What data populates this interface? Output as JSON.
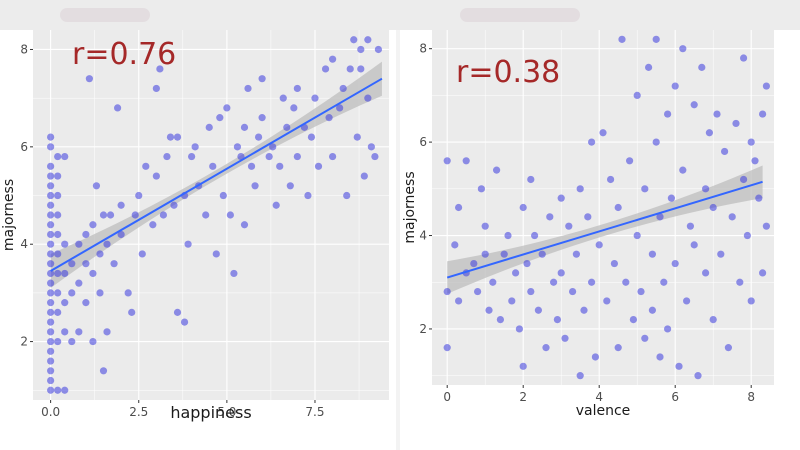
{
  "colors": {
    "background": "#f3f3f3",
    "panel_bg": "#ebebeb",
    "grid": "#ffffff",
    "point": "#3b3bdf",
    "fit_line": "#3366ff",
    "ci_band": "#bdbdbd",
    "annotation": "#a52828"
  },
  "chart_data": [
    {
      "type": "scatter",
      "title": "",
      "annotation": "r=0.76",
      "xlabel": "happiness",
      "ylabel": "majorness",
      "xlim": [
        -0.5,
        9.6
      ],
      "ylim": [
        0.8,
        8.4
      ],
      "xticks": [
        0,
        2.5,
        5,
        7.5
      ],
      "xtick_labels": [
        "0.0",
        "2.5",
        "5.0",
        "7.5"
      ],
      "yticks": [
        2,
        4,
        6,
        8
      ],
      "ytick_labels": [
        "2",
        "4",
        "6",
        "8"
      ],
      "grid": true,
      "fit": {
        "x0": 0,
        "y0": 3.45,
        "x1": 9.4,
        "y1": 7.4,
        "se_min": 0.1,
        "se_max": 0.35
      },
      "points": [
        [
          0,
          1.0
        ],
        [
          0,
          1.2
        ],
        [
          0,
          1.4
        ],
        [
          0,
          1.6
        ],
        [
          0,
          1.8
        ],
        [
          0,
          2.0
        ],
        [
          0,
          2.2
        ],
        [
          0,
          2.4
        ],
        [
          0,
          2.6
        ],
        [
          0,
          2.8
        ],
        [
          0,
          3.0
        ],
        [
          0,
          3.2
        ],
        [
          0,
          3.4
        ],
        [
          0,
          3.6
        ],
        [
          0,
          3.8
        ],
        [
          0,
          4.0
        ],
        [
          0,
          4.2
        ],
        [
          0,
          4.4
        ],
        [
          0,
          4.6
        ],
        [
          0,
          4.8
        ],
        [
          0,
          5.0
        ],
        [
          0,
          5.2
        ],
        [
          0,
          5.4
        ],
        [
          0,
          5.6
        ],
        [
          0,
          6.0
        ],
        [
          0,
          6.2
        ],
        [
          0.2,
          1.0
        ],
        [
          0.2,
          2.0
        ],
        [
          0.2,
          2.6
        ],
        [
          0.2,
          3.0
        ],
        [
          0.2,
          3.4
        ],
        [
          0.2,
          3.8
        ],
        [
          0.2,
          4.2
        ],
        [
          0.2,
          4.6
        ],
        [
          0.2,
          5.0
        ],
        [
          0.2,
          5.4
        ],
        [
          0.2,
          5.8
        ],
        [
          0.4,
          1.0
        ],
        [
          0.4,
          2.2
        ],
        [
          0.4,
          2.8
        ],
        [
          0.4,
          3.4
        ],
        [
          0.4,
          4.0
        ],
        [
          0.4,
          5.8
        ],
        [
          0.6,
          2.0
        ],
        [
          0.6,
          3.0
        ],
        [
          0.6,
          3.6
        ],
        [
          0.8,
          2.2
        ],
        [
          0.8,
          3.2
        ],
        [
          0.8,
          4.0
        ],
        [
          1.0,
          2.8
        ],
        [
          1.0,
          3.6
        ],
        [
          1.0,
          4.2
        ],
        [
          1.1,
          7.4
        ],
        [
          1.2,
          2.0
        ],
        [
          1.2,
          3.4
        ],
        [
          1.2,
          4.4
        ],
        [
          1.3,
          5.2
        ],
        [
          1.4,
          3.0
        ],
        [
          1.4,
          3.8
        ],
        [
          1.5,
          4.6
        ],
        [
          1.5,
          1.4
        ],
        [
          1.6,
          2.2
        ],
        [
          1.6,
          4.0
        ],
        [
          1.7,
          4.6
        ],
        [
          1.8,
          3.6
        ],
        [
          1.9,
          6.8
        ],
        [
          2.0,
          4.2
        ],
        [
          2.0,
          4.8
        ],
        [
          2.2,
          3.0
        ],
        [
          2.3,
          2.6
        ],
        [
          2.4,
          4.6
        ],
        [
          2.5,
          5.0
        ],
        [
          2.6,
          3.8
        ],
        [
          2.7,
          5.6
        ],
        [
          2.9,
          4.4
        ],
        [
          3.0,
          5.4
        ],
        [
          3.0,
          7.2
        ],
        [
          3.1,
          7.6
        ],
        [
          3.2,
          4.6
        ],
        [
          3.3,
          5.8
        ],
        [
          3.4,
          6.2
        ],
        [
          3.5,
          4.8
        ],
        [
          3.6,
          2.6
        ],
        [
          3.6,
          6.2
        ],
        [
          3.8,
          2.4
        ],
        [
          3.8,
          5.0
        ],
        [
          3.9,
          4.0
        ],
        [
          4.0,
          5.8
        ],
        [
          4.1,
          6.0
        ],
        [
          4.2,
          5.2
        ],
        [
          4.4,
          4.6
        ],
        [
          4.5,
          6.4
        ],
        [
          4.6,
          5.6
        ],
        [
          4.7,
          3.8
        ],
        [
          4.8,
          6.6
        ],
        [
          4.9,
          5.0
        ],
        [
          5.0,
          6.8
        ],
        [
          5.1,
          4.6
        ],
        [
          5.2,
          3.4
        ],
        [
          5.3,
          6.0
        ],
        [
          5.4,
          5.8
        ],
        [
          5.5,
          6.4
        ],
        [
          5.5,
          4.4
        ],
        [
          5.6,
          7.2
        ],
        [
          5.7,
          5.6
        ],
        [
          5.8,
          5.2
        ],
        [
          5.9,
          6.2
        ],
        [
          6.0,
          6.6
        ],
        [
          6.0,
          7.4
        ],
        [
          6.2,
          5.8
        ],
        [
          6.3,
          6.0
        ],
        [
          6.4,
          4.8
        ],
        [
          6.5,
          5.6
        ],
        [
          6.6,
          7.0
        ],
        [
          6.7,
          6.4
        ],
        [
          6.8,
          5.2
        ],
        [
          6.9,
          6.8
        ],
        [
          7.0,
          5.8
        ],
        [
          7.0,
          7.2
        ],
        [
          7.2,
          6.4
        ],
        [
          7.3,
          5.0
        ],
        [
          7.4,
          6.2
        ],
        [
          7.5,
          7.0
        ],
        [
          7.6,
          5.6
        ],
        [
          7.8,
          7.6
        ],
        [
          7.9,
          6.6
        ],
        [
          8.0,
          5.8
        ],
        [
          8.0,
          7.8
        ],
        [
          8.2,
          6.8
        ],
        [
          8.3,
          7.2
        ],
        [
          8.4,
          5.0
        ],
        [
          8.5,
          7.6
        ],
        [
          8.6,
          8.2
        ],
        [
          8.7,
          6.2
        ],
        [
          8.8,
          8.0
        ],
        [
          8.8,
          7.6
        ],
        [
          8.9,
          5.4
        ],
        [
          9.0,
          8.2
        ],
        [
          9.0,
          7.0
        ],
        [
          9.1,
          6.0
        ],
        [
          9.2,
          5.8
        ],
        [
          9.3,
          8.0
        ]
      ]
    },
    {
      "type": "scatter",
      "title": "",
      "annotation": "r=0.38",
      "xlabel": "valence",
      "ylabel": "majorness",
      "xlim": [
        -0.4,
        8.6
      ],
      "ylim": [
        0.8,
        8.4
      ],
      "xticks": [
        0,
        2,
        4,
        6,
        8
      ],
      "xtick_labels": [
        "0",
        "2",
        "4",
        "6",
        "8"
      ],
      "yticks": [
        2,
        4,
        6,
        8
      ],
      "ytick_labels": [
        "2",
        "4",
        "6",
        "8"
      ],
      "grid": true,
      "fit": {
        "x0": 0,
        "y0": 3.1,
        "x1": 8.3,
        "y1": 5.15,
        "se_min": 0.13,
        "se_max": 0.35
      },
      "points": [
        [
          0,
          1.6
        ],
        [
          0,
          2.8
        ],
        [
          0,
          5.6
        ],
        [
          0.2,
          3.8
        ],
        [
          0.3,
          4.6
        ],
        [
          0.3,
          2.6
        ],
        [
          0.5,
          5.6
        ],
        [
          0.5,
          3.2
        ],
        [
          0.7,
          3.4
        ],
        [
          0.8,
          2.8
        ],
        [
          0.9,
          5.0
        ],
        [
          1.0,
          3.6
        ],
        [
          1.0,
          4.2
        ],
        [
          1.1,
          2.4
        ],
        [
          1.2,
          3.0
        ],
        [
          1.3,
          5.4
        ],
        [
          1.4,
          2.2
        ],
        [
          1.5,
          3.6
        ],
        [
          1.6,
          4.0
        ],
        [
          1.7,
          2.6
        ],
        [
          1.8,
          3.2
        ],
        [
          1.9,
          2.0
        ],
        [
          2.0,
          4.6
        ],
        [
          2.0,
          1.2
        ],
        [
          2.1,
          3.4
        ],
        [
          2.2,
          2.8
        ],
        [
          2.2,
          5.2
        ],
        [
          2.3,
          4.0
        ],
        [
          2.4,
          2.4
        ],
        [
          2.5,
          3.6
        ],
        [
          2.6,
          1.6
        ],
        [
          2.7,
          4.4
        ],
        [
          2.8,
          3.0
        ],
        [
          2.9,
          2.2
        ],
        [
          3.0,
          4.8
        ],
        [
          3.0,
          3.2
        ],
        [
          3.1,
          1.8
        ],
        [
          3.2,
          4.2
        ],
        [
          3.3,
          2.8
        ],
        [
          3.4,
          3.6
        ],
        [
          3.5,
          1.0
        ],
        [
          3.5,
          5.0
        ],
        [
          3.6,
          2.4
        ],
        [
          3.7,
          4.4
        ],
        [
          3.8,
          6.0
        ],
        [
          3.8,
          3.0
        ],
        [
          3.9,
          1.4
        ],
        [
          4.0,
          3.8
        ],
        [
          4.1,
          6.2
        ],
        [
          4.2,
          2.6
        ],
        [
          4.3,
          5.2
        ],
        [
          4.4,
          3.4
        ],
        [
          4.5,
          4.6
        ],
        [
          4.5,
          1.6
        ],
        [
          4.6,
          8.2
        ],
        [
          4.7,
          3.0
        ],
        [
          4.8,
          5.6
        ],
        [
          4.9,
          2.2
        ],
        [
          5.0,
          4.0
        ],
        [
          5.0,
          7.0
        ],
        [
          5.1,
          2.8
        ],
        [
          5.2,
          5.0
        ],
        [
          5.2,
          1.8
        ],
        [
          5.3,
          7.6
        ],
        [
          5.4,
          3.6
        ],
        [
          5.4,
          2.4
        ],
        [
          5.5,
          8.2
        ],
        [
          5.5,
          6.0
        ],
        [
          5.6,
          4.4
        ],
        [
          5.6,
          1.4
        ],
        [
          5.7,
          3.0
        ],
        [
          5.8,
          6.6
        ],
        [
          5.8,
          2.0
        ],
        [
          5.9,
          4.8
        ],
        [
          6.0,
          7.2
        ],
        [
          6.0,
          3.4
        ],
        [
          6.1,
          1.2
        ],
        [
          6.2,
          5.4
        ],
        [
          6.2,
          8.0
        ],
        [
          6.3,
          2.6
        ],
        [
          6.4,
          4.2
        ],
        [
          6.5,
          6.8
        ],
        [
          6.5,
          3.8
        ],
        [
          6.6,
          1.0
        ],
        [
          6.7,
          7.6
        ],
        [
          6.8,
          5.0
        ],
        [
          6.8,
          3.2
        ],
        [
          6.9,
          6.2
        ],
        [
          7.0,
          2.2
        ],
        [
          7.0,
          4.6
        ],
        [
          7.1,
          6.6
        ],
        [
          7.2,
          3.6
        ],
        [
          7.3,
          5.8
        ],
        [
          7.4,
          1.6
        ],
        [
          7.5,
          4.4
        ],
        [
          7.6,
          6.4
        ],
        [
          7.7,
          3.0
        ],
        [
          7.8,
          5.2
        ],
        [
          7.8,
          7.8
        ],
        [
          7.9,
          4.0
        ],
        [
          8.0,
          6.0
        ],
        [
          8.0,
          2.6
        ],
        [
          8.1,
          5.6
        ],
        [
          8.2,
          4.8
        ],
        [
          8.3,
          3.2
        ],
        [
          8.3,
          6.6
        ],
        [
          8.4,
          7.2
        ],
        [
          8.4,
          4.2
        ]
      ]
    }
  ]
}
